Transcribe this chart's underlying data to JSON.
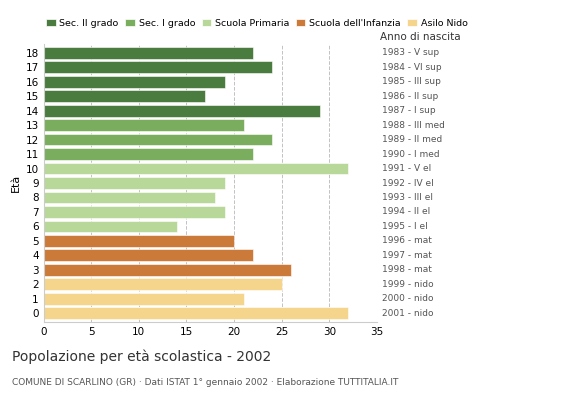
{
  "ages": [
    18,
    17,
    16,
    15,
    14,
    13,
    12,
    11,
    10,
    9,
    8,
    7,
    6,
    5,
    4,
    3,
    2,
    1,
    0
  ],
  "values": [
    22,
    24,
    19,
    17,
    29,
    21,
    24,
    22,
    32,
    19,
    18,
    19,
    14,
    20,
    22,
    26,
    25,
    21,
    32
  ],
  "right_labels": [
    "1983 - V sup",
    "1984 - VI sup",
    "1985 - III sup",
    "1986 - II sup",
    "1987 - I sup",
    "1988 - III med",
    "1989 - II med",
    "1990 - I med",
    "1991 - V el",
    "1992 - IV el",
    "1993 - III el",
    "1994 - II el",
    "1995 - I el",
    "1996 - mat",
    "1997 - mat",
    "1998 - mat",
    "1999 - nido",
    "2000 - nido",
    "2001 - nido"
  ],
  "colors": [
    "#4a7c40",
    "#4a7c40",
    "#4a7c40",
    "#4a7c40",
    "#4a7c40",
    "#7aad5e",
    "#7aad5e",
    "#7aad5e",
    "#b8d89a",
    "#b8d89a",
    "#b8d89a",
    "#b8d89a",
    "#b8d89a",
    "#cc7a3a",
    "#cc7a3a",
    "#cc7a3a",
    "#f5d58c",
    "#f5d58c",
    "#f5d58c"
  ],
  "legend_labels": [
    "Sec. II grado",
    "Sec. I grado",
    "Scuola Primaria",
    "Scuola dell'Infanzia",
    "Asilo Nido"
  ],
  "legend_colors": [
    "#4a7c40",
    "#7aad5e",
    "#b8d89a",
    "#cc7a3a",
    "#f5d58c"
  ],
  "title": "Popolazione per età scolastica - 2002",
  "subtitle": "COMUNE DI SCARLINO (GR) · Dati ISTAT 1° gennaio 2002 · Elaborazione TUTTITALIA.IT",
  "label_eta": "Età",
  "label_anno": "Anno di nascita",
  "xlim": [
    0,
    35
  ],
  "xticks": [
    0,
    5,
    10,
    15,
    20,
    25,
    30,
    35
  ],
  "background_color": "#ffffff",
  "bar_height": 0.82,
  "grid_color": "#bbbbbb"
}
